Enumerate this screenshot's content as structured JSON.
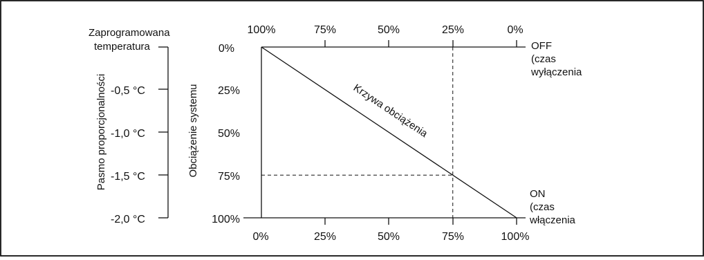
{
  "left_axis": {
    "title": "Pasmo proporcjonalności",
    "top_label": [
      "Zaprogramowana",
      "temperatura"
    ],
    "ticks": [
      "-0,5 °C",
      "-1,0 °C",
      "-1,5 °C",
      "-2,0 °C"
    ]
  },
  "load_axis": {
    "title": "Obciążenie systemu",
    "ticks": [
      "0%",
      "25%",
      "50%",
      "75%",
      "100%"
    ]
  },
  "top_axis": {
    "ticks": [
      "100%",
      "75%",
      "50%",
      "25%",
      "0%"
    ],
    "end_label": [
      "OFF",
      "(czas",
      "wyłączenia"
    ]
  },
  "bottom_axis": {
    "ticks": [
      "0%",
      "25%",
      "50%",
      "75%",
      "100%"
    ],
    "end_label": [
      "ON",
      "(czas",
      "włączenia"
    ]
  },
  "curve": {
    "label": "Krzywa obciążenia",
    "points": [
      [
        0,
        0
      ],
      [
        100,
        100
      ]
    ]
  },
  "marker": {
    "x_percent": 75,
    "y_percent": 75
  }
}
